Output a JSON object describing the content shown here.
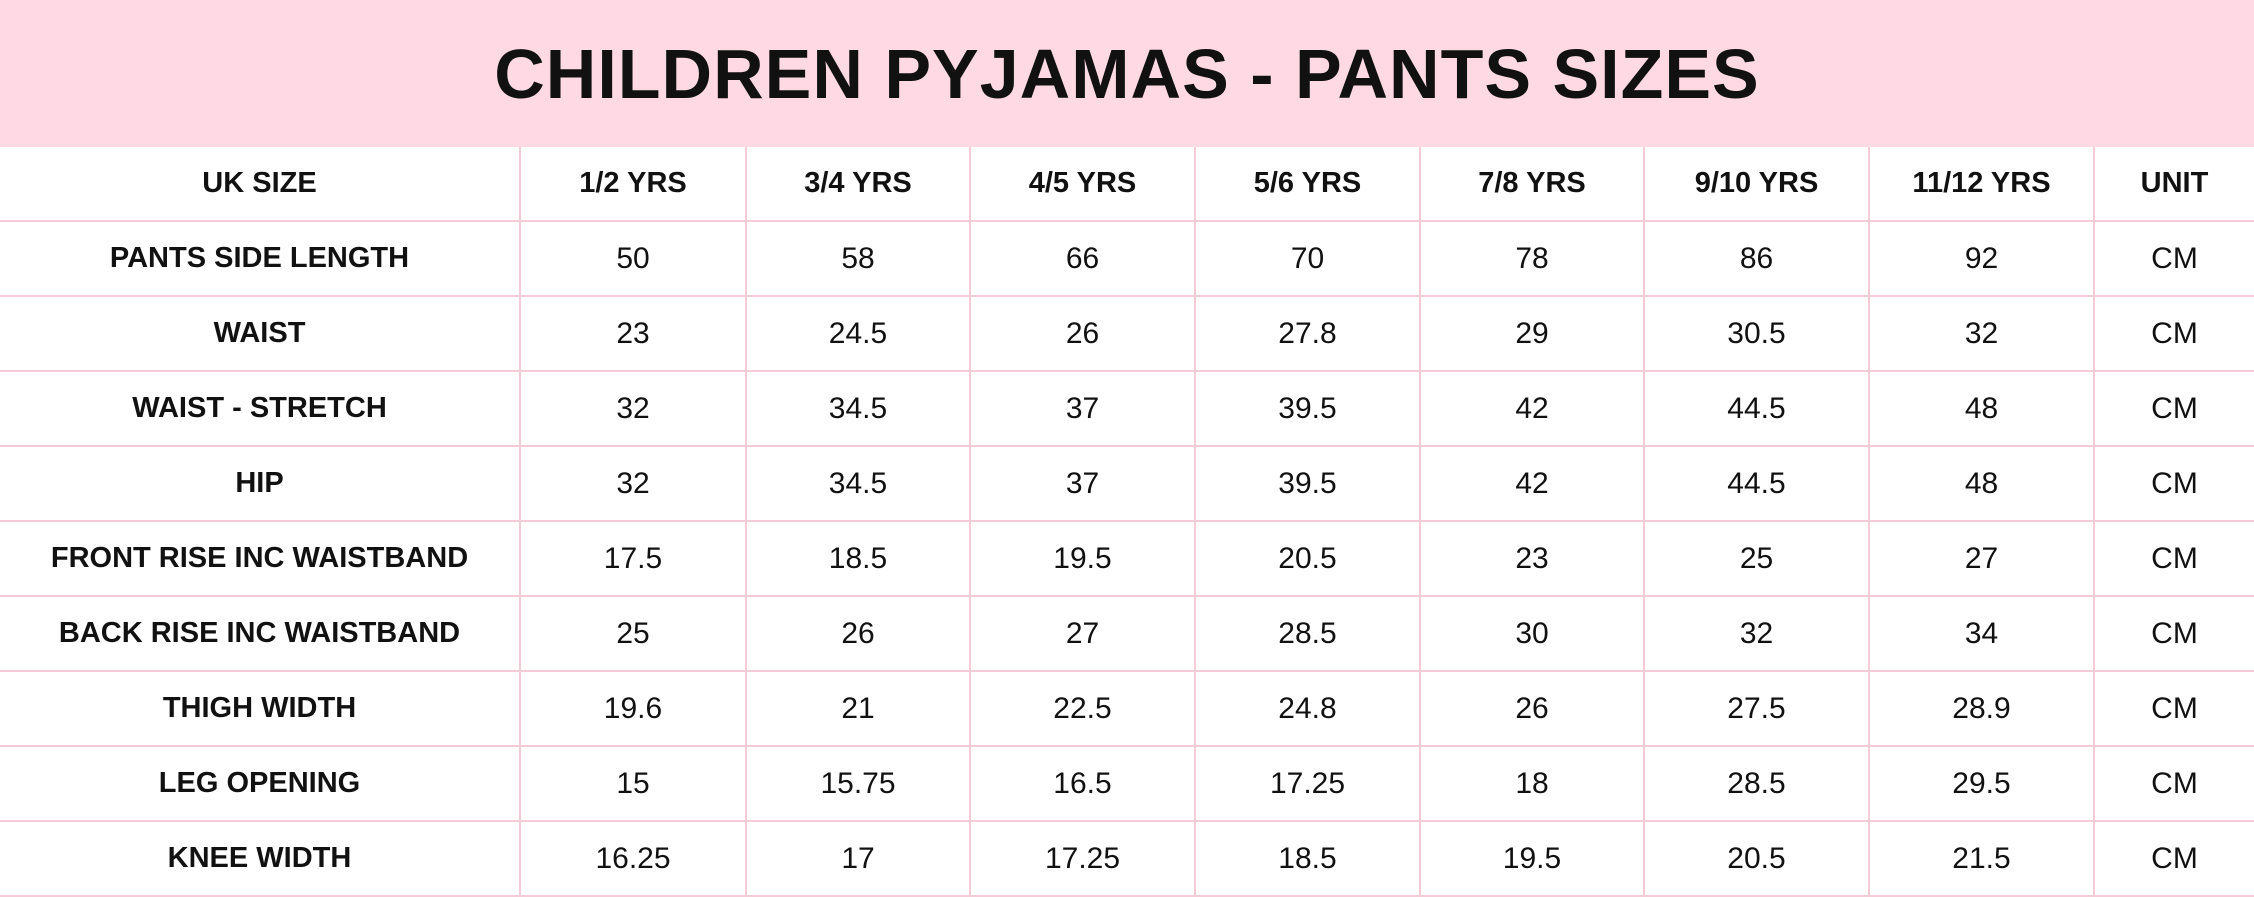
{
  "header": {
    "title": "CHILDREN PYJAMAS - PANTS SIZES"
  },
  "table": {
    "columns": [
      "UK SIZE",
      "1/2 YRS",
      "3/4 YRS",
      "4/5 YRS",
      "5/6 YRS",
      "7/8 YRS",
      "9/10 YRS",
      "11/12 YRS",
      "UNIT"
    ],
    "rows": [
      [
        "PANTS SIDE LENGTH",
        "50",
        "58",
        "66",
        "70",
        "78",
        "86",
        "92",
        "CM"
      ],
      [
        "WAIST",
        "23",
        "24.5",
        "26",
        "27.8",
        "29",
        "30.5",
        "32",
        "CM"
      ],
      [
        "WAIST - STRETCH",
        "32",
        "34.5",
        "37",
        "39.5",
        "42",
        "44.5",
        "48",
        "CM"
      ],
      [
        "HIP",
        "32",
        "34.5",
        "37",
        "39.5",
        "42",
        "44.5",
        "48",
        "CM"
      ],
      [
        "FRONT RISE INC WAISTBAND",
        "17.5",
        "18.5",
        "19.5",
        "20.5",
        "23",
        "25",
        "27",
        "CM"
      ],
      [
        "BACK RISE INC WAISTBAND",
        "25",
        "26",
        "27",
        "28.5",
        "30",
        "32",
        "34",
        "CM"
      ],
      [
        "THIGH WIDTH",
        "19.6",
        "21",
        "22.5",
        "24.8",
        "26",
        "27.5",
        "28.9",
        "CM"
      ],
      [
        "LEG OPENING",
        "15",
        "15.75",
        "16.5",
        "17.25",
        "18",
        "28.5",
        "29.5",
        "CM"
      ],
      [
        "KNEE WIDTH",
        "16.25",
        "17",
        "17.25",
        "18.5",
        "19.5",
        "20.5",
        "21.5",
        "CM"
      ]
    ]
  }
}
